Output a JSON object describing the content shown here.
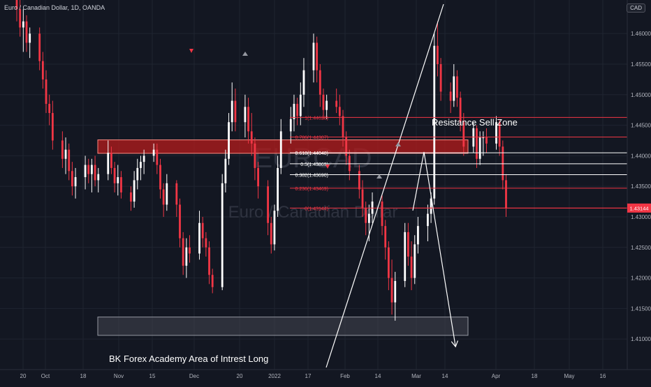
{
  "header": {
    "title": "Euro / Canadian Dollar, 1D, OANDA",
    "currency": "CAD"
  },
  "colors": {
    "background": "#131722",
    "bull": "#ffffff",
    "bear": "#f23645",
    "grid": "#1f2430",
    "axis_text": "#b2b5be",
    "watermark": "#2f3340",
    "resistance_fill": "#b71c1c",
    "resistance_border": "#ff8a80",
    "support_fill": "#434651",
    "support_border": "#9598a1",
    "price_badge": "#f23645",
    "fib_red": "#f23645",
    "fib_white": "#ffffff",
    "trend_line": "#ffffff"
  },
  "watermark": {
    "symbol": "EURCAD",
    "name": "Euro / Canadian Dollar"
  },
  "annotations": {
    "resistance_label": "Resistance Sell Zone",
    "support_label": "BK Forex Academy Area of Intrest Long"
  },
  "current_price": {
    "value": 1.43144,
    "label": "1.43144"
  },
  "chart_data": {
    "type": "candlestick",
    "title": "Euro / Canadian Dollar, 1D, OANDA",
    "y_axis": {
      "min": 1.405,
      "max": 1.4655,
      "ticks": [
        "1.46000",
        "1.45500",
        "1.45000",
        "1.44500",
        "1.44000",
        "1.43500",
        "1.43000",
        "1.42500",
        "1.42000",
        "1.41500",
        "1.41000"
      ]
    },
    "x_axis": {
      "ticks": [
        "20",
        "Oct",
        "18",
        "Nov",
        "15",
        "Dec",
        "20",
        "2022",
        "17",
        "Feb",
        "14",
        "Mar",
        "14",
        "Apr",
        "18",
        "May",
        "16"
      ],
      "start_date": "2021-09-20"
    },
    "zones": [
      {
        "name": "Resistance Sell Zone",
        "top": 1.4426,
        "bottom": 1.4404
      },
      {
        "name": "BK Forex Academy Area of Intrest Long",
        "top": 1.4136,
        "bottom": 1.4106
      }
    ],
    "fibonacci": [
      {
        "label": "1(1.44628)",
        "price": 1.44628,
        "tone": "red"
      },
      {
        "label": "0.786(1.44307)",
        "price": 1.44307,
        "tone": "red"
      },
      {
        "label": "0.618(1.44048)",
        "price": 1.44048,
        "tone": "white"
      },
      {
        "label": "0.5(1.43869)",
        "price": 1.43869,
        "tone": "white"
      },
      {
        "label": "0.382(1.43690)",
        "price": 1.4369,
        "tone": "white"
      },
      {
        "label": "0.236(1.43469)",
        "price": 1.43469,
        "tone": "red"
      },
      {
        "label": "0(1.43144)",
        "price": 1.43144,
        "tone": "red"
      }
    ],
    "projection_path": [
      {
        "date": "2022-03-01",
        "price": 1.4313
      },
      {
        "date": "2022-03-07",
        "price": 1.4408
      },
      {
        "date": "2022-04-01",
        "price": 1.4106
      }
    ],
    "trend_line": [
      {
        "date": "2022-01-18",
        "price": 1.4058
      },
      {
        "date": "2022-03-24",
        "price": 1.4652
      }
    ],
    "candles": [
      [
        "2021-09-20",
        1.4675,
        1.469,
        1.462,
        1.464
      ],
      [
        "2021-09-21",
        1.464,
        1.466,
        1.4595,
        1.461
      ],
      [
        "2021-09-22",
        1.461,
        1.464,
        1.457,
        1.462
      ],
      [
        "2021-09-23",
        1.462,
        1.463,
        1.457,
        1.4585
      ],
      [
        "2021-09-24",
        1.4585,
        1.461,
        1.456,
        1.46
      ],
      [
        "2021-09-27",
        1.46,
        1.461,
        1.454,
        1.4555
      ],
      [
        "2021-09-28",
        1.4555,
        1.457,
        1.451,
        1.4525
      ],
      [
        "2021-09-29",
        1.4525,
        1.454,
        1.447,
        1.4485
      ],
      [
        "2021-09-30",
        1.4485,
        1.45,
        1.445,
        1.447
      ],
      [
        "2021-10-01",
        1.447,
        1.449,
        1.441,
        1.4425
      ],
      [
        "2021-10-04",
        1.4425,
        1.444,
        1.438,
        1.4395
      ],
      [
        "2021-10-05",
        1.4395,
        1.443,
        1.437,
        1.441
      ],
      [
        "2021-10-06",
        1.441,
        1.442,
        1.436,
        1.4375
      ],
      [
        "2021-10-07",
        1.4375,
        1.439,
        1.4335,
        1.435
      ],
      [
        "2021-10-08",
        1.435,
        1.438,
        1.433,
        1.4365
      ],
      [
        "2021-10-11",
        1.4365,
        1.44,
        1.4345,
        1.4385
      ],
      [
        "2021-10-12",
        1.4385,
        1.4395,
        1.4355,
        1.437
      ],
      [
        "2021-10-13",
        1.437,
        1.4395,
        1.434,
        1.4385
      ],
      [
        "2021-10-14",
        1.4385,
        1.44,
        1.435,
        1.436
      ],
      [
        "2021-10-15",
        1.436,
        1.438,
        1.434,
        1.437
      ],
      [
        "2021-10-18",
        1.437,
        1.4425,
        1.436,
        1.4405
      ],
      [
        "2021-10-19",
        1.4405,
        1.4415,
        1.437,
        1.438
      ],
      [
        "2021-10-20",
        1.438,
        1.439,
        1.434,
        1.4355
      ],
      [
        "2021-10-21",
        1.4355,
        1.4385,
        1.4335,
        1.4365
      ],
      [
        "2021-10-22",
        1.4365,
        1.4375,
        1.433,
        1.434
      ],
      [
        "2021-10-25",
        1.434,
        1.435,
        1.431,
        1.4325
      ],
      [
        "2021-10-26",
        1.4325,
        1.4375,
        1.4315,
        1.436
      ],
      [
        "2021-10-27",
        1.436,
        1.4395,
        1.4345,
        1.438
      ],
      [
        "2021-10-28",
        1.438,
        1.44,
        1.436,
        1.439
      ],
      [
        "2021-10-29",
        1.439,
        1.441,
        1.437,
        1.44
      ],
      [
        "2021-11-01",
        1.44,
        1.442,
        1.439,
        1.441
      ],
      [
        "2021-11-02",
        1.441,
        1.442,
        1.437,
        1.4385
      ],
      [
        "2021-11-03",
        1.4385,
        1.4395,
        1.433,
        1.4345
      ],
      [
        "2021-11-04",
        1.4345,
        1.4355,
        1.43,
        1.432
      ],
      [
        "2021-11-05",
        1.432,
        1.437,
        1.431,
        1.4355
      ],
      [
        "2021-11-08",
        1.4355,
        1.436,
        1.43,
        1.432
      ],
      [
        "2021-11-09",
        1.432,
        1.433,
        1.425,
        1.4265
      ],
      [
        "2021-11-10",
        1.4265,
        1.4275,
        1.4205,
        1.422
      ],
      [
        "2021-11-11",
        1.422,
        1.4265,
        1.42,
        1.425
      ],
      [
        "2021-11-12",
        1.425,
        1.427,
        1.4225,
        1.424
      ],
      [
        "2021-11-15",
        1.424,
        1.431,
        1.423,
        1.429
      ],
      [
        "2021-11-16",
        1.429,
        1.43,
        1.425,
        1.4265
      ],
      [
        "2021-11-17",
        1.4265,
        1.4275,
        1.4235,
        1.425
      ],
      [
        "2021-11-18",
        1.425,
        1.426,
        1.419,
        1.4205
      ],
      [
        "2021-11-19",
        1.4205,
        1.4215,
        1.4175,
        1.4185
      ],
      [
        "2021-11-22",
        1.4185,
        1.437,
        1.418,
        1.4355
      ],
      [
        "2021-11-23",
        1.4355,
        1.441,
        1.434,
        1.4395
      ],
      [
        "2021-11-24",
        1.4395,
        1.447,
        1.4385,
        1.4455
      ],
      [
        "2021-11-25",
        1.4455,
        1.452,
        1.444,
        1.449
      ],
      [
        "2021-11-26",
        1.449,
        1.451,
        1.444,
        1.4455
      ],
      [
        "2021-11-29",
        1.4455,
        1.45,
        1.443,
        1.448
      ],
      [
        "2021-11-30",
        1.448,
        1.4495,
        1.442,
        1.444
      ],
      [
        "2021-12-01",
        1.444,
        1.447,
        1.44,
        1.442
      ],
      [
        "2021-12-02",
        1.442,
        1.443,
        1.436,
        1.438
      ],
      [
        "2021-12-03",
        1.438,
        1.439,
        1.433,
        1.435
      ],
      [
        "2021-12-06",
        1.435,
        1.436,
        1.427,
        1.429
      ],
      [
        "2021-12-07",
        1.429,
        1.43,
        1.424,
        1.4255
      ],
      [
        "2021-12-08",
        1.4255,
        1.432,
        1.4245,
        1.431
      ],
      [
        "2021-12-09",
        1.431,
        1.44,
        1.43,
        1.438
      ],
      [
        "2021-12-10",
        1.438,
        1.446,
        1.437,
        1.444
      ],
      [
        "2021-12-13",
        1.444,
        1.448,
        1.442,
        1.446
      ],
      [
        "2021-12-14",
        1.446,
        1.45,
        1.444,
        1.4485
      ],
      [
        "2021-12-15",
        1.4485,
        1.4495,
        1.445,
        1.4465
      ],
      [
        "2021-12-16",
        1.4465,
        1.452,
        1.445,
        1.45
      ],
      [
        "2021-12-17",
        1.45,
        1.456,
        1.448,
        1.454
      ],
      [
        "2021-12-20",
        1.454,
        1.46,
        1.452,
        1.4585
      ],
      [
        "2021-12-21",
        1.4585,
        1.4595,
        1.452,
        1.454
      ],
      [
        "2021-12-22",
        1.454,
        1.455,
        1.448,
        1.45
      ],
      [
        "2021-12-23",
        1.45,
        1.451,
        1.446,
        1.4475
      ],
      [
        "2021-12-24",
        1.4475,
        1.45,
        1.446,
        1.449
      ],
      [
        "2021-12-27",
        1.449,
        1.451,
        1.447,
        1.448
      ],
      [
        "2021-12-28",
        1.448,
        1.45,
        1.445,
        1.4465
      ],
      [
        "2021-12-29",
        1.4465,
        1.4475,
        1.4415,
        1.443
      ],
      [
        "2021-12-30",
        1.443,
        1.444,
        1.4385,
        1.44
      ],
      [
        "2021-12-31",
        1.44,
        1.441,
        1.436,
        1.4375
      ],
      [
        "2022-01-03",
        1.4375,
        1.4385,
        1.433,
        1.4345
      ],
      [
        "2022-01-04",
        1.4345,
        1.436,
        1.43,
        1.4315
      ],
      [
        "2022-01-05",
        1.4315,
        1.4325,
        1.427,
        1.429
      ],
      [
        "2022-01-06",
        1.429,
        1.432,
        1.426,
        1.4305
      ],
      [
        "2022-01-07",
        1.4305,
        1.434,
        1.429,
        1.4325
      ],
      [
        "2022-01-10",
        1.4325,
        1.4335,
        1.427,
        1.4285
      ],
      [
        "2022-01-11",
        1.4285,
        1.4295,
        1.423,
        1.425
      ],
      [
        "2022-01-12",
        1.425,
        1.426,
        1.418,
        1.42
      ],
      [
        "2022-01-13",
        1.42,
        1.423,
        1.414,
        1.416
      ],
      [
        "2022-01-14",
        1.416,
        1.421,
        1.413,
        1.4195
      ],
      [
        "2022-01-17",
        1.4195,
        1.429,
        1.4185,
        1.4275
      ],
      [
        "2022-01-18",
        1.4275,
        1.429,
        1.422,
        1.4235
      ],
      [
        "2022-01-19",
        1.4235,
        1.426,
        1.418,
        1.42
      ],
      [
        "2022-01-20",
        1.42,
        1.427,
        1.419,
        1.4255
      ],
      [
        "2022-01-21",
        1.4255,
        1.43,
        1.424,
        1.4285
      ],
      [
        "2022-01-24",
        1.4285,
        1.432,
        1.426,
        1.4305
      ],
      [
        "2022-01-25",
        1.4305,
        1.434,
        1.429,
        1.433
      ],
      [
        "2022-01-26",
        1.433,
        1.46,
        1.432,
        1.458
      ],
      [
        "2022-01-27",
        1.458,
        1.462,
        1.453,
        1.455
      ],
      [
        "2022-01-28",
        1.455,
        1.456,
        1.449,
        1.4505
      ],
      [
        "2022-01-31",
        1.4505,
        1.452,
        1.447,
        1.449
      ],
      [
        "2022-02-01",
        1.449,
        1.455,
        1.448,
        1.453
      ],
      [
        "2022-02-02",
        1.453,
        1.454,
        1.448,
        1.4495
      ],
      [
        "2022-02-03",
        1.4495,
        1.4505,
        1.444,
        1.4455
      ],
      [
        "2022-02-04",
        1.4455,
        1.447,
        1.44,
        1.4415
      ],
      [
        "2022-02-07",
        1.4415,
        1.4455,
        1.4405,
        1.4445
      ],
      [
        "2022-02-08",
        1.4445,
        1.445,
        1.438,
        1.4395
      ],
      [
        "2022-02-09",
        1.4395,
        1.444,
        1.4385,
        1.443
      ],
      [
        "2022-02-10",
        1.443,
        1.444,
        1.44,
        1.443
      ],
      [
        "2022-02-11",
        1.443,
        1.4445,
        1.4405,
        1.442
      ],
      [
        "2022-02-14",
        1.442,
        1.4465,
        1.441,
        1.4455
      ],
      [
        "2022-02-15",
        1.4455,
        1.446,
        1.44,
        1.4415
      ],
      [
        "2022-02-16",
        1.4415,
        1.4425,
        1.4345,
        1.436
      ],
      [
        "2022-02-17",
        1.436,
        1.437,
        1.43,
        1.4314
      ]
    ]
  }
}
